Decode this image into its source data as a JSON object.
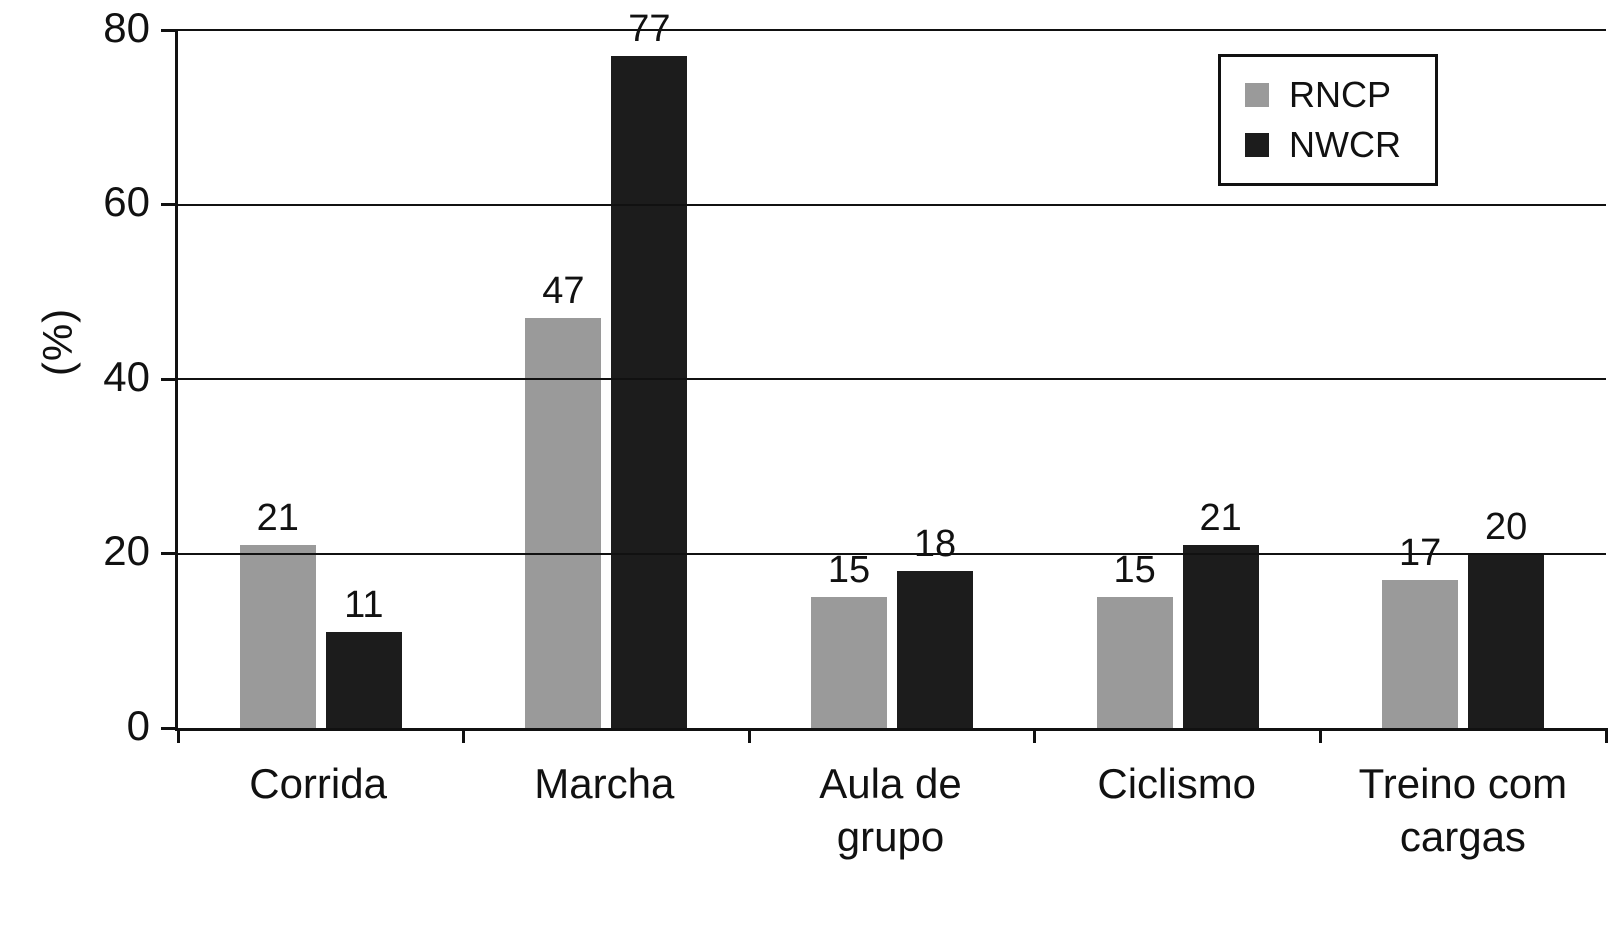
{
  "chart_data": {
    "type": "bar",
    "title": "",
    "xlabel": "",
    "ylabel": "(%)",
    "ylim": [
      0,
      80
    ],
    "yticks": [
      0,
      20,
      40,
      60,
      80
    ],
    "grid": true,
    "legend_position": "top-right",
    "categories": [
      "Corrida",
      "Marcha",
      "Aula de\ngrupo",
      "Ciclismo",
      "Treino com\ncargas"
    ],
    "series": [
      {
        "name": "RNCP",
        "color": "#9a9a9a",
        "values": [
          21,
          47,
          15,
          15,
          17
        ]
      },
      {
        "name": "NWCR",
        "color": "#1c1c1c",
        "values": [
          11,
          77,
          18,
          21,
          20
        ]
      }
    ]
  },
  "colors": {
    "axis": "#111111",
    "background": "#ffffff",
    "text": "#111111"
  }
}
